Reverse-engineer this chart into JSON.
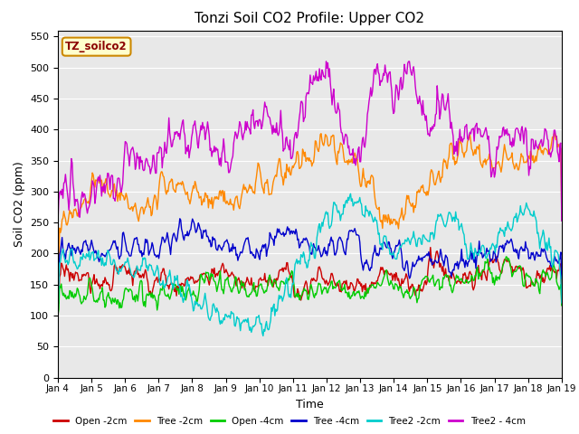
{
  "title": "Tonzi Soil CO2 Profile: Upper CO2",
  "xlabel": "Time",
  "ylabel": "Soil CO2 (ppm)",
  "ylim": [
    0,
    560
  ],
  "yticks": [
    0,
    50,
    100,
    150,
    200,
    250,
    300,
    350,
    400,
    450,
    500,
    550
  ],
  "legend_label": "TZ_soilco2",
  "series": [
    {
      "label": "Open -2cm",
      "color": "#cc0000"
    },
    {
      "label": "Tree -2cm",
      "color": "#ff8800"
    },
    {
      "label": "Open -4cm",
      "color": "#00cc00"
    },
    {
      "label": "Tree -4cm",
      "color": "#0000cc"
    },
    {
      "label": "Tree2 -2cm",
      "color": "#00cccc"
    },
    {
      "label": "Tree2 - 4cm",
      "color": "#cc00cc"
    }
  ],
  "n_points": 600,
  "x_start": 0,
  "x_end": 15,
  "xtick_positions": [
    0,
    1,
    2,
    3,
    4,
    5,
    6,
    7,
    8,
    9,
    10,
    11,
    12,
    13,
    14,
    15
  ],
  "xtick_labels": [
    "Jan 4",
    "Jan 5",
    "Jan 6",
    "Jan 7",
    "Jan 8",
    "Jan 9",
    "Jan 10",
    "Jan 11",
    "Jan 12",
    "Jan 13",
    "Jan 14",
    "Jan 15",
    "Jan 16",
    "Jan 17",
    "Jan 18",
    "Jan 19"
  ],
  "background_color": "#ffffff",
  "plot_bg_color": "#e8e8e8",
  "grid_color": "#ffffff",
  "title_fontsize": 11,
  "legend_label_color": "#8b0000",
  "legend_box_facecolor": "#ffffcc",
  "legend_box_edgecolor": "#cc8800"
}
